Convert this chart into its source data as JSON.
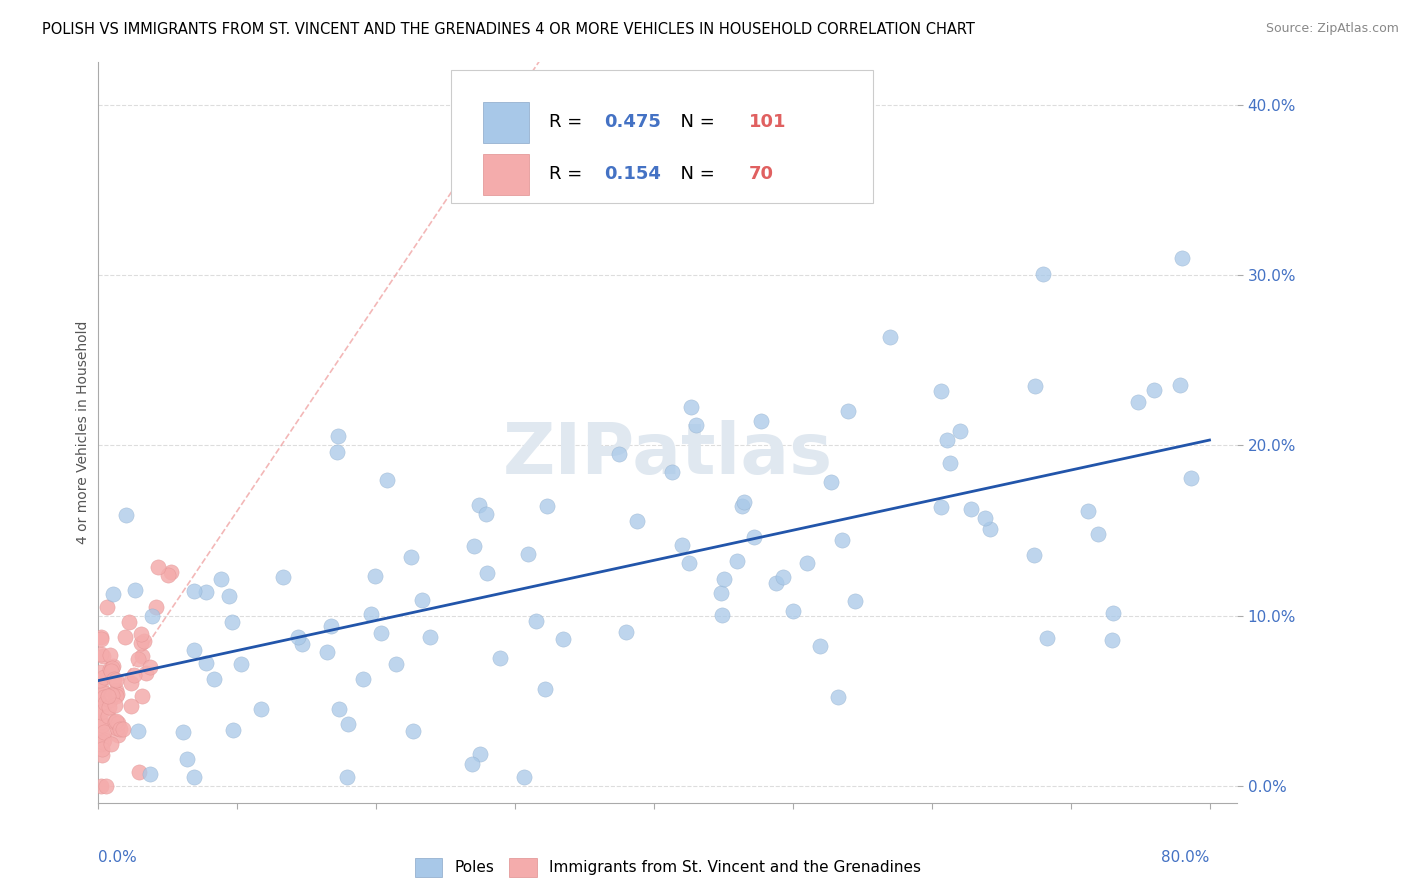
{
  "title": "POLISH VS IMMIGRANTS FROM ST. VINCENT AND THE GRENADINES 4 OR MORE VEHICLES IN HOUSEHOLD CORRELATION CHART",
  "source": "Source: ZipAtlas.com",
  "xlabel_bottom_left": "0.0%",
  "xlabel_bottom_right": "80.0%",
  "ylabel": "4 or more Vehicles in Household",
  "ytick_labels": [
    "0.0%",
    "10.0%",
    "20.0%",
    "30.0%",
    "40.0%"
  ],
  "ytick_values": [
    0.0,
    0.1,
    0.2,
    0.3,
    0.4
  ],
  "xlim": [
    0.0,
    0.82
  ],
  "ylim": [
    -0.01,
    0.425
  ],
  "legend_label_poles": "Poles",
  "legend_label_svg": "Immigrants from St. Vincent and the Grenadines",
  "R_poles": 0.475,
  "N_poles": 101,
  "R_svg": 0.154,
  "N_svg": 70,
  "color_poles": "#A8C8E8",
  "color_svg": "#F4ACAC",
  "trendline_color_poles": "#2255AA",
  "trendline_color_svg": "#EE9999",
  "watermark_text": "ZIPatlas",
  "watermark_color": "#E0E8F0",
  "background_color": "#FFFFFF",
  "grid_color": "#DDDDDD",
  "title_fontsize": 10.5,
  "source_fontsize": 9,
  "tick_label_fontsize": 11,
  "ylabel_fontsize": 10,
  "legend_fontsize": 13
}
